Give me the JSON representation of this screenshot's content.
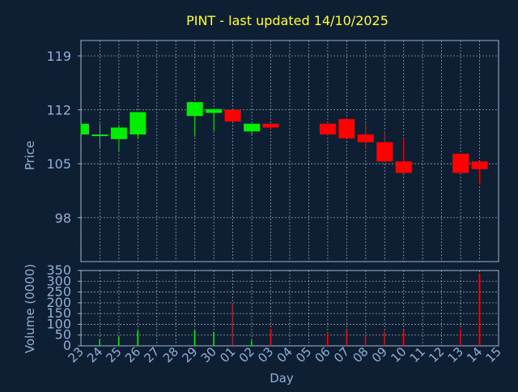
{
  "colors": {
    "background": "#0f1f33",
    "title": "#ffff33",
    "axis_text": "#8fb0d4",
    "grid": "#c8c8c8",
    "up": "#00ee00",
    "down": "#ff0000"
  },
  "chart_data": [
    {
      "type": "candlestick",
      "title": "PINT - last updated 14/10/2025",
      "ylabel": "Price",
      "ylim": [
        92.3,
        121.0
      ],
      "yticks": [
        98,
        105,
        112,
        119
      ],
      "grid": true,
      "x": [
        "23",
        "24",
        "25",
        "26",
        "27",
        "28",
        "29",
        "30",
        "01",
        "02",
        "03",
        "04",
        "05",
        "06",
        "07",
        "08",
        "09",
        "10",
        "11",
        "12",
        "13",
        "14",
        "15"
      ],
      "candles": [
        {
          "x": "23",
          "open": 108.8,
          "close": 110.2,
          "high": 110.2,
          "low": 108.8
        },
        {
          "x": "24",
          "open": 108.6,
          "close": 108.8,
          "high": 110.2,
          "low": 107.1
        },
        {
          "x": "25",
          "open": 108.2,
          "close": 109.7,
          "high": 110.0,
          "low": 106.7
        },
        {
          "x": "26",
          "open": 108.8,
          "close": 111.7,
          "high": 111.7,
          "low": 108.3
        },
        {
          "x": "29",
          "open": 111.2,
          "close": 113.0,
          "high": 113.0,
          "low": 108.5
        },
        {
          "x": "30",
          "open": 111.6,
          "close": 112.1,
          "high": 112.1,
          "low": 109.3
        },
        {
          "x": "01",
          "open": 112.0,
          "close": 110.5,
          "high": 112.0,
          "low": 110.5
        },
        {
          "x": "02",
          "open": 109.2,
          "close": 110.2,
          "high": 110.2,
          "low": 108.8
        },
        {
          "x": "03",
          "open": 110.2,
          "close": 109.7,
          "high": 110.2,
          "low": 109.5
        },
        {
          "x": "06",
          "open": 110.2,
          "close": 108.8,
          "high": 110.2,
          "low": 108.6
        },
        {
          "x": "07",
          "open": 110.8,
          "close": 108.3,
          "high": 110.8,
          "low": 108.3
        },
        {
          "x": "08",
          "open": 108.8,
          "close": 107.8,
          "high": 110.2,
          "low": 106.9
        },
        {
          "x": "09",
          "open": 107.8,
          "close": 105.3,
          "high": 109.2,
          "low": 105.3
        },
        {
          "x": "10",
          "open": 105.3,
          "close": 103.8,
          "high": 108.3,
          "low": 103.8
        },
        {
          "x": "13",
          "open": 106.3,
          "close": 103.8,
          "high": 106.3,
          "low": 103.8
        },
        {
          "x": "14",
          "open": 105.3,
          "close": 104.3,
          "high": 105.3,
          "low": 102.3
        }
      ]
    },
    {
      "type": "bar",
      "ylabel": "Volume (0000)",
      "xlabel": "Day",
      "ylim": [
        0,
        350
      ],
      "yticks": [
        0,
        50,
        100,
        150,
        200,
        250,
        300,
        350
      ],
      "grid": true,
      "categories": [
        "23",
        "24",
        "25",
        "26",
        "27",
        "28",
        "29",
        "30",
        "01",
        "02",
        "03",
        "04",
        "05",
        "06",
        "07",
        "08",
        "09",
        "10",
        "11",
        "12",
        "13",
        "14",
        "15"
      ],
      "bars": [
        {
          "x": "24",
          "value": 30,
          "dir": "up"
        },
        {
          "x": "25",
          "value": 42,
          "dir": "up"
        },
        {
          "x": "26",
          "value": 70,
          "dir": "up"
        },
        {
          "x": "29",
          "value": 72,
          "dir": "up"
        },
        {
          "x": "30",
          "value": 65,
          "dir": "up"
        },
        {
          "x": "01",
          "value": 200,
          "dir": "down"
        },
        {
          "x": "02",
          "value": 25,
          "dir": "up"
        },
        {
          "x": "03",
          "value": 80,
          "dir": "down"
        },
        {
          "x": "06",
          "value": 55,
          "dir": "down"
        },
        {
          "x": "07",
          "value": 75,
          "dir": "down"
        },
        {
          "x": "08",
          "value": 50,
          "dir": "down"
        },
        {
          "x": "09",
          "value": 65,
          "dir": "down"
        },
        {
          "x": "10",
          "value": 70,
          "dir": "down"
        },
        {
          "x": "13",
          "value": 80,
          "dir": "down"
        },
        {
          "x": "14",
          "value": 335,
          "dir": "down"
        }
      ]
    }
  ]
}
